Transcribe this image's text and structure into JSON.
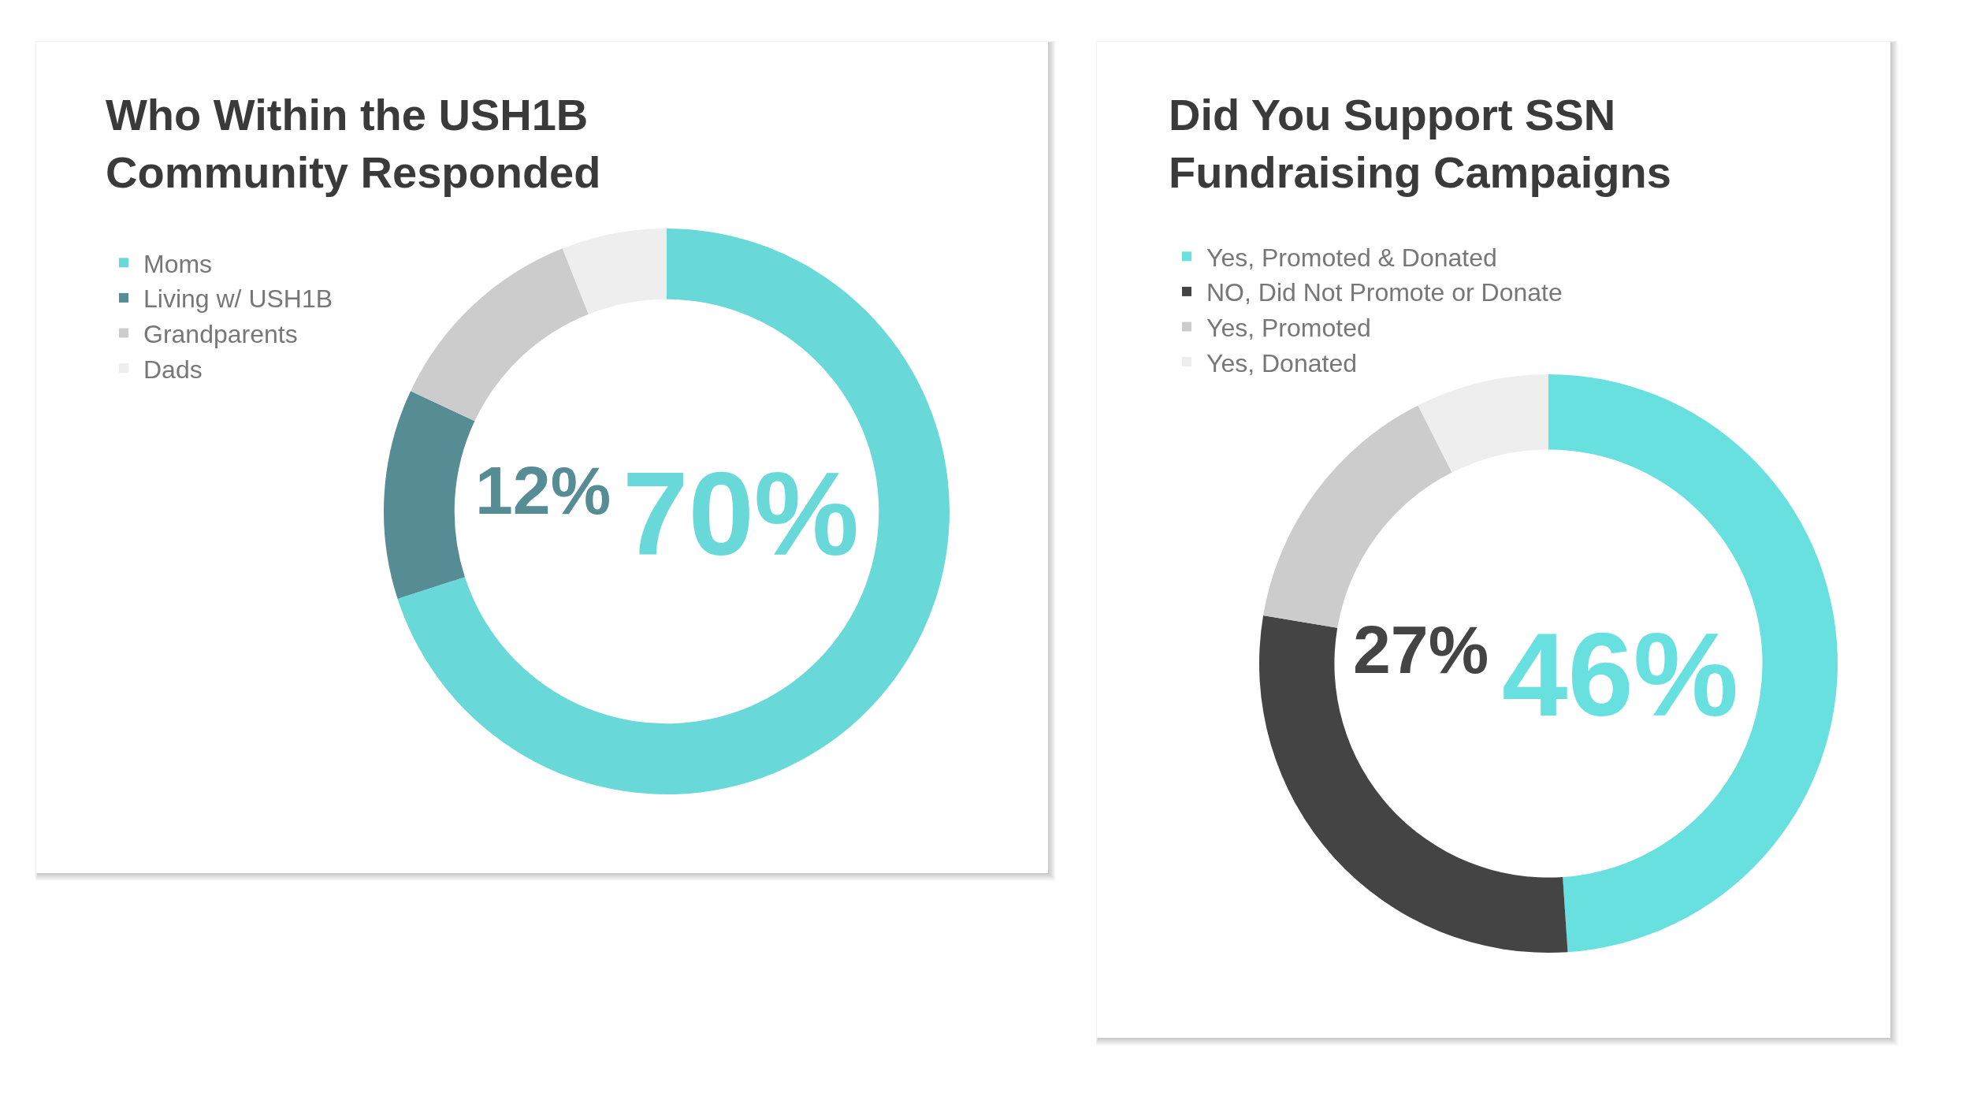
{
  "chart_data": [
    {
      "type": "donut",
      "title": "Who Within the USH1B Community Responded",
      "categories": [
        "Moms",
        "Living w/ USH1B",
        "Grandparents",
        "Dads"
      ],
      "values": [
        70,
        12,
        12,
        6
      ],
      "colors": [
        "#68d8d8",
        "#568c94",
        "#cccccc",
        "#eeeeee"
      ],
      "value_labels": [
        "70%",
        "12%",
        null,
        null
      ],
      "legend": "top left"
    },
    {
      "type": "donut",
      "title": "Did You Support SSN Fundraising Campaigns",
      "categories": [
        "Yes, Promoted & Donated",
        "NO, Did Not Promote or Donate",
        "Yes, Promoted",
        "Yes, Donated"
      ],
      "values": [
        46,
        27,
        14,
        7
      ],
      "colors": [
        "#69e0e0",
        "#444444",
        "#cccccc",
        "#eeeeee"
      ],
      "value_labels": [
        "46%",
        "27%",
        null,
        null
      ],
      "legend": "top left"
    }
  ]
}
